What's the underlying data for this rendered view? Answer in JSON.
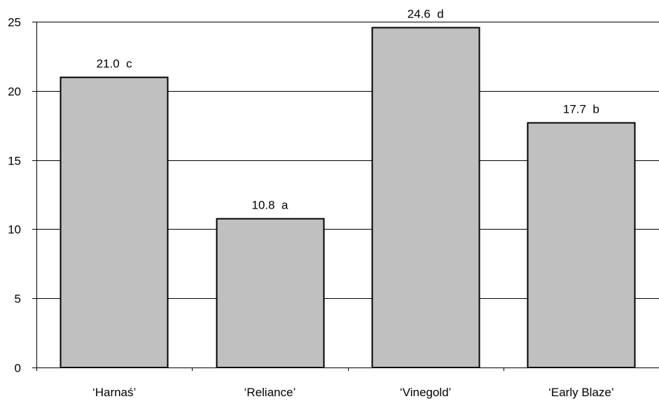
{
  "chart_data": {
    "type": "bar",
    "title": "",
    "xlabel": "",
    "ylabel": "",
    "categories": [
      "‘Harnaś’",
      "‘Reliance’",
      "‘Vinegold’",
      "‘Early Blaze’"
    ],
    "values": [
      21.0,
      10.8,
      24.6,
      17.7
    ],
    "data_labels": [
      "21.0  c",
      "10.8  a",
      "24.6  d",
      "17.7  b"
    ],
    "ylim": [
      0,
      25
    ],
    "yticks": [
      0,
      5,
      10,
      15,
      20,
      25
    ],
    "grid": true,
    "legend": "none",
    "colors": {
      "bar_fill": "#c0c0c0",
      "bar_stroke": "#000000",
      "grid": "#000000",
      "axis": "#000000"
    }
  }
}
